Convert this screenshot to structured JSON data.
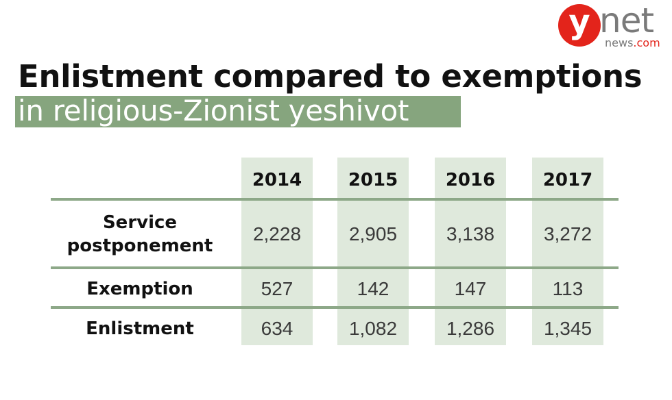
{
  "logo": {
    "brand": "y",
    "net": "net",
    "news": "news",
    "com": ".com"
  },
  "chart_data": {
    "type": "table",
    "title": "Enlistment compared to exemptions",
    "subtitle": "in religious-Zionist yeshivot",
    "columns": [
      "2014",
      "2015",
      "2016",
      "2017"
    ],
    "rows": [
      {
        "label_lines": [
          "Service",
          "postponement"
        ],
        "values": [
          "2,228",
          "2,905",
          "3,138",
          "3,272"
        ]
      },
      {
        "label_lines": [
          "Exemption"
        ],
        "values": [
          "527",
          "142",
          "147",
          "113"
        ]
      },
      {
        "label_lines": [
          "Enlistment"
        ],
        "values": [
          "634",
          "1,082",
          "1,286",
          "1,345"
        ]
      }
    ],
    "colors": {
      "accent": "#86a57e",
      "column_bg": "#dfe9dc",
      "rule": "#8da888",
      "logo_red": "#e3241b",
      "logo_gray": "#7a7a7a"
    }
  }
}
